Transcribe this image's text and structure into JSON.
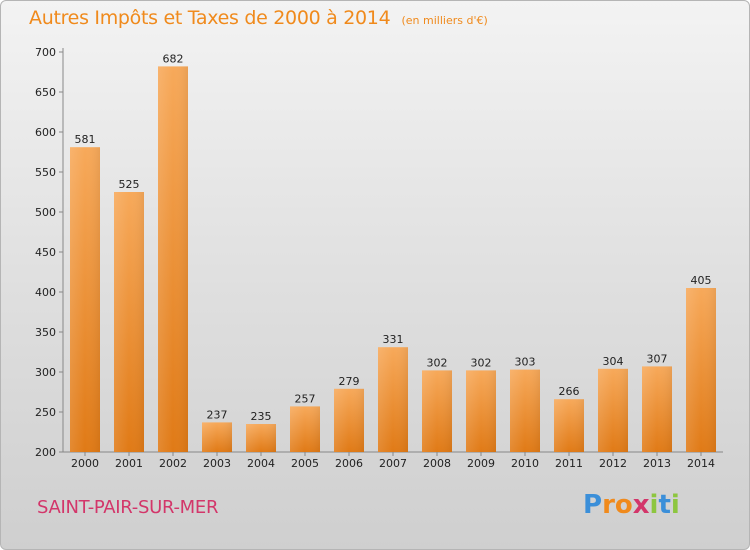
{
  "title": "Autres Impôts et Taxes de 2000 à 2014",
  "subtitle": "(en milliers d'€)",
  "town": "SAINT-PAIR-SUR-MER",
  "logo": {
    "letters": [
      "P",
      "r",
      "o",
      "x",
      "i",
      "t",
      "i"
    ],
    "colors": [
      "#3b8fd9",
      "#f08a1c",
      "#f08a1c",
      "#d3366a",
      "#8dc63f",
      "#3b8fd9",
      "#8dc63f"
    ]
  },
  "colors": {
    "bar_top": "#f7a95a",
    "bar_bottom": "#e07a16",
    "title": "#f08a1c",
    "town": "#d3366a"
  },
  "chart_data": {
    "type": "bar",
    "categories": [
      "2000",
      "2001",
      "2002",
      "2003",
      "2004",
      "2005",
      "2006",
      "2007",
      "2008",
      "2009",
      "2010",
      "2011",
      "2012",
      "2013",
      "2014"
    ],
    "values": [
      581,
      525,
      682,
      237,
      235,
      257,
      279,
      331,
      302,
      302,
      303,
      266,
      304,
      307,
      405
    ],
    "ylim": [
      200,
      700
    ],
    "yticks": [
      200,
      250,
      300,
      350,
      400,
      450,
      500,
      550,
      600,
      650,
      700
    ],
    "grid": false,
    "xlabel": "",
    "ylabel": ""
  }
}
